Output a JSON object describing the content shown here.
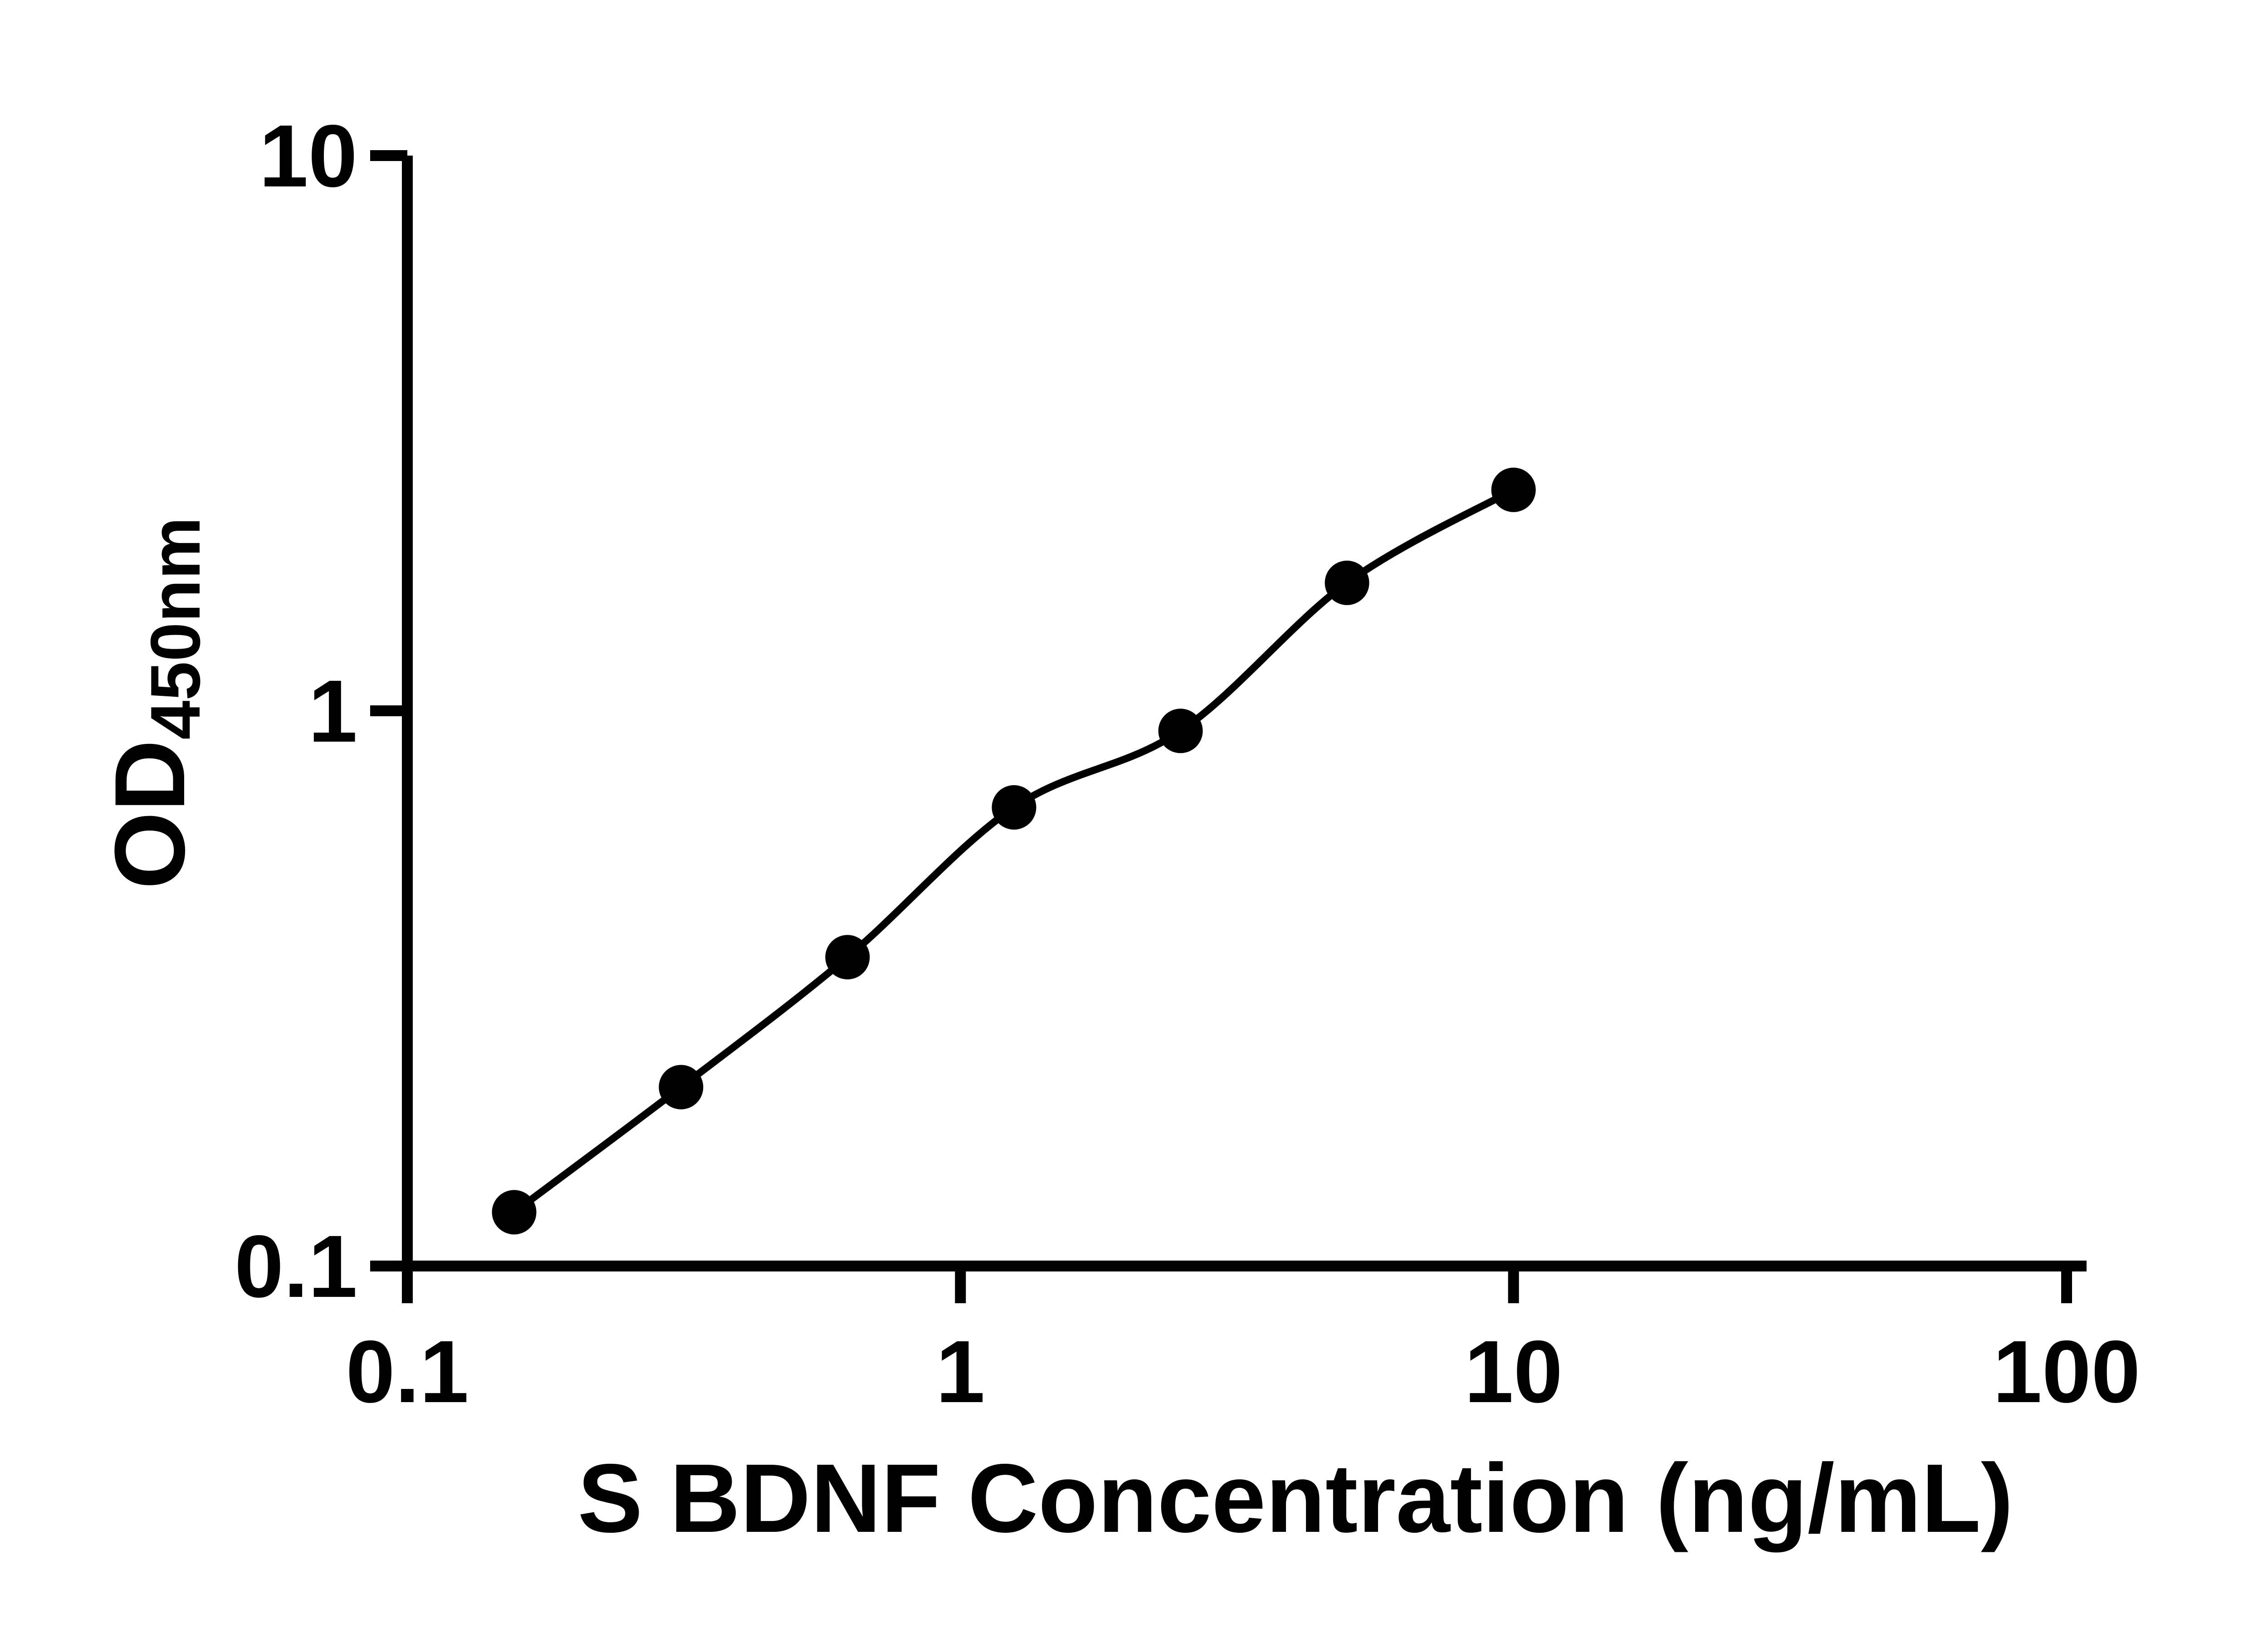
{
  "figure": {
    "background": "#ffffff"
  },
  "chart_data": {
    "type": "scatter",
    "title": "",
    "curve": "smooth",
    "legend": "none",
    "grid": false,
    "colors": {
      "axis": "#000000",
      "marker": "#000000",
      "curve": "#000000",
      "background": "#ffffff"
    },
    "x_axis": {
      "label": "S BDNF Concentration (ng/mL)",
      "scale": "log",
      "min": 0.1,
      "max": 100,
      "ticks": [
        {
          "value": 0.1,
          "label": "0.1"
        },
        {
          "value": 1,
          "label": "1"
        },
        {
          "value": 10,
          "label": "10"
        },
        {
          "value": 100,
          "label": "100"
        }
      ]
    },
    "y_axis": {
      "label_main": "OD",
      "label_subscript": "450nm",
      "scale": "log",
      "min": 0.1,
      "max": 10,
      "ticks": [
        {
          "value": 0.1,
          "label": "0.1"
        },
        {
          "value": 1,
          "label": "1"
        },
        {
          "value": 10,
          "label": "10"
        }
      ]
    },
    "points": [
      {
        "x": 0.156,
        "y": 0.125
      },
      {
        "x": 0.3125,
        "y": 0.21
      },
      {
        "x": 0.625,
        "y": 0.36
      },
      {
        "x": 1.25,
        "y": 0.67
      },
      {
        "x": 2.5,
        "y": 0.92
      },
      {
        "x": 5,
        "y": 1.7
      },
      {
        "x": 10,
        "y": 2.5
      }
    ]
  }
}
